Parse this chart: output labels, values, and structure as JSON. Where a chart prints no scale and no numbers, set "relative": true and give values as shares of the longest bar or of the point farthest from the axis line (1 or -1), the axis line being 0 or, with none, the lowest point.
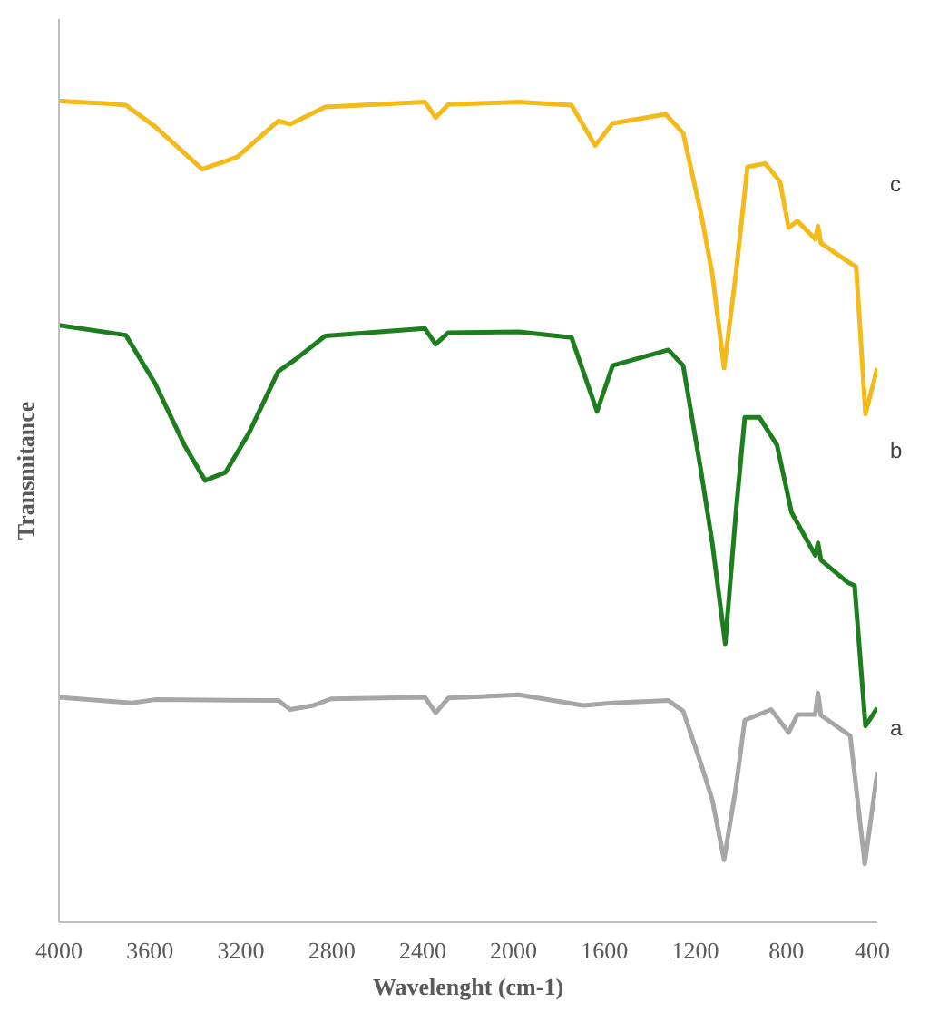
{
  "chart_data": {
    "type": "line",
    "relative": true,
    "xlabel": "Wavelenght (cm-1)",
    "ylabel": "Transmitance",
    "xlim": [
      4000,
      400
    ],
    "xticks": [
      4000,
      3600,
      3200,
      2800,
      2400,
      2000,
      1600,
      1200,
      800,
      400
    ],
    "grid": false,
    "marker": "none",
    "line_style": "solid",
    "series": [
      {
        "name": "c",
        "color": "#f4b91a",
        "x": [
          4000,
          3783,
          3706,
          3577,
          3370,
          3216,
          3035,
          2983,
          2829,
          2390,
          2343,
          2287,
          1977,
          1745,
          1641,
          1564,
          1331,
          1254,
          1177,
          1126,
          1074,
          1022,
          971,
          893,
          828,
          790,
          751,
          673,
          661,
          648,
          531,
          493,
          452,
          400
        ],
        "values": [
          1.0,
          0.997,
          0.995,
          0.969,
          0.917,
          0.932,
          0.976,
          0.972,
          0.993,
          0.999,
          0.98,
          0.996,
          0.999,
          0.995,
          0.946,
          0.973,
          0.984,
          0.961,
          0.865,
          0.79,
          0.675,
          0.79,
          0.92,
          0.924,
          0.902,
          0.846,
          0.854,
          0.832,
          0.848,
          0.827,
          0.805,
          0.798,
          0.619,
          0.675
        ]
      },
      {
        "name": "b",
        "color": "#1e7d1e",
        "x": [
          4000,
          3706,
          3577,
          3448,
          3357,
          3267,
          3164,
          3035,
          2957,
          2829,
          2390,
          2343,
          2287,
          1977,
          1745,
          1633,
          1564,
          1319,
          1254,
          1177,
          1126,
          1069,
          1022,
          983,
          919,
          841,
          777,
          673,
          661,
          648,
          531,
          500,
          452,
          400
        ],
        "values": [
          0.727,
          0.715,
          0.656,
          0.581,
          0.538,
          0.548,
          0.596,
          0.671,
          0.686,
          0.714,
          0.723,
          0.704,
          0.718,
          0.719,
          0.712,
          0.622,
          0.678,
          0.697,
          0.678,
          0.552,
          0.462,
          0.339,
          0.499,
          0.615,
          0.615,
          0.581,
          0.499,
          0.447,
          0.462,
          0.441,
          0.414,
          0.41,
          0.239,
          0.261
        ]
      },
      {
        "name": "a",
        "color": "#a6a6a6",
        "x": [
          4000,
          3680,
          3577,
          3035,
          2983,
          2880,
          2803,
          2390,
          2343,
          2287,
          1977,
          1693,
          1564,
          1319,
          1254,
          1177,
          1126,
          1074,
          1022,
          983,
          867,
          790,
          751,
          673,
          661,
          648,
          519,
          455,
          400
        ],
        "values": [
          0.274,
          0.267,
          0.271,
          0.27,
          0.259,
          0.264,
          0.272,
          0.274,
          0.255,
          0.273,
          0.277,
          0.264,
          0.267,
          0.27,
          0.257,
          0.194,
          0.149,
          0.076,
          0.164,
          0.246,
          0.259,
          0.231,
          0.253,
          0.253,
          0.279,
          0.252,
          0.227,
          0.071,
          0.183
        ]
      }
    ]
  }
}
